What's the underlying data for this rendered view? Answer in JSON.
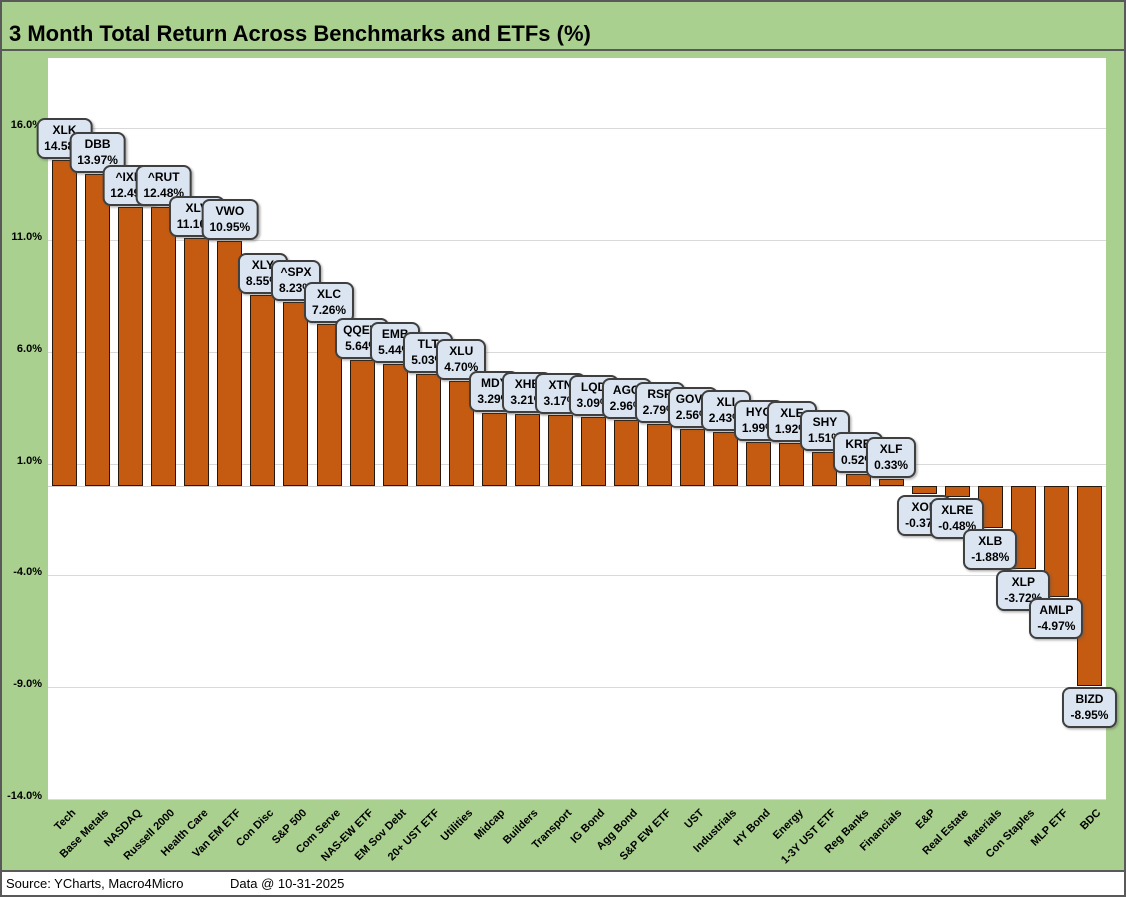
{
  "title": "3 Month Total Return Across Benchmarks and ETFs (%)",
  "footer": {
    "source": "Source: YCharts, Macro4Micro",
    "data_date": "Data @ 10-31-2025"
  },
  "chart_data": {
    "type": "bar",
    "title": "3 Month Total Return Across Benchmarks and ETFs (%)",
    "xlabel": "",
    "ylabel": "",
    "ylim": [
      -14,
      19.15
    ],
    "grid": true,
    "legend": null,
    "yticks": [
      {
        "value": 16,
        "label": "16.0%"
      },
      {
        "value": 11,
        "label": "11.0%"
      },
      {
        "value": 6,
        "label": "6.0%"
      },
      {
        "value": 1,
        "label": "1.0%"
      },
      {
        "value": -4,
        "label": "-4.0%"
      },
      {
        "value": -9,
        "label": "-9.0%"
      },
      {
        "value": -14,
        "label": "-14.0%"
      }
    ],
    "points": [
      {
        "category": "Tech",
        "ticker": "XLK",
        "value": 14.58,
        "label": "14.58%"
      },
      {
        "category": "Base Metals",
        "ticker": "DBB",
        "value": 13.97,
        "label": "13.97%"
      },
      {
        "category": "NASDAQ",
        "ticker": "^IXIC",
        "value": 12.49,
        "label": "12.49%"
      },
      {
        "category": "Russell 2000",
        "ticker": "^RUT",
        "value": 12.48,
        "label": "12.48%"
      },
      {
        "category": "Health Care",
        "ticker": "XLV",
        "value": 11.1,
        "label": "11.10%"
      },
      {
        "category": "Van EM ETF",
        "ticker": "VWO",
        "value": 10.95,
        "label": "10.95%"
      },
      {
        "category": "Con Disc",
        "ticker": "XLY",
        "value": 8.55,
        "label": "8.55%"
      },
      {
        "category": "S&P 500",
        "ticker": "^SPX",
        "value": 8.23,
        "label": "8.23%"
      },
      {
        "category": "Com Serve",
        "ticker": "XLC",
        "value": 7.26,
        "label": "7.26%"
      },
      {
        "category": "NAS-EW ETF",
        "ticker": "QQEW",
        "value": 5.64,
        "label": "5.64%"
      },
      {
        "category": "EM Sov Debt",
        "ticker": "EMB",
        "value": 5.44,
        "label": "5.44%"
      },
      {
        "category": "20+ UST ETF",
        "ticker": "TLT",
        "value": 5.03,
        "label": "5.03%"
      },
      {
        "category": "Utilities",
        "ticker": "XLU",
        "value": 4.7,
        "label": "4.70%"
      },
      {
        "category": "Midcap",
        "ticker": "MDY",
        "value": 3.29,
        "label": "3.29%"
      },
      {
        "category": "Builders",
        "ticker": "XHB",
        "value": 3.21,
        "label": "3.21%"
      },
      {
        "category": "Transport",
        "ticker": "XTN",
        "value": 3.17,
        "label": "3.17%"
      },
      {
        "category": "IG Bond",
        "ticker": "LQD",
        "value": 3.09,
        "label": "3.09%"
      },
      {
        "category": "Agg Bond",
        "ticker": "AGG",
        "value": 2.96,
        "label": "2.96%"
      },
      {
        "category": "S&P EW ETF",
        "ticker": "RSP",
        "value": 2.79,
        "label": "2.79%"
      },
      {
        "category": "UST",
        "ticker": "GOVT",
        "value": 2.56,
        "label": "2.56%"
      },
      {
        "category": "Industrials",
        "ticker": "XLI",
        "value": 2.43,
        "label": "2.43%"
      },
      {
        "category": "HY Bond",
        "ticker": "HYG",
        "value": 1.99,
        "label": "1.99%"
      },
      {
        "category": "Energy",
        "ticker": "XLE",
        "value": 1.92,
        "label": "1.92%"
      },
      {
        "category": "1-3Y UST ETF",
        "ticker": "SHY",
        "value": 1.51,
        "label": "1.51%"
      },
      {
        "category": "Reg Banks",
        "ticker": "KRE",
        "value": 0.52,
        "label": "0.52%"
      },
      {
        "category": "Financials",
        "ticker": "XLF",
        "value": 0.33,
        "label": "0.33%"
      },
      {
        "category": "E&P",
        "ticker": "XOP",
        "value": -0.37,
        "label": "-0.37%"
      },
      {
        "category": "Real Estate",
        "ticker": "XLRE",
        "value": -0.48,
        "label": "-0.48%"
      },
      {
        "category": "Materials",
        "ticker": "XLB",
        "value": -1.88,
        "label": "-1.88%"
      },
      {
        "category": "Con Staples",
        "ticker": "XLP",
        "value": -3.72,
        "label": "-3.72%"
      },
      {
        "category": "MLP ETF",
        "ticker": "AMLP",
        "value": -4.97,
        "label": "-4.97%"
      },
      {
        "category": "BDC",
        "ticker": "BIZD",
        "value": -8.95,
        "label": "-8.95%"
      }
    ],
    "colors": {
      "background": "#A9D08E",
      "plot_background": "#FFFFFF",
      "bar_fill": "#C55A11",
      "bar_border": "#26190B",
      "callout_fill": "#DBE5F1",
      "callout_border": "#3F3F3F",
      "gridline": "#D9D9D9",
      "frame_border": "#595959",
      "text": "#000000"
    }
  }
}
